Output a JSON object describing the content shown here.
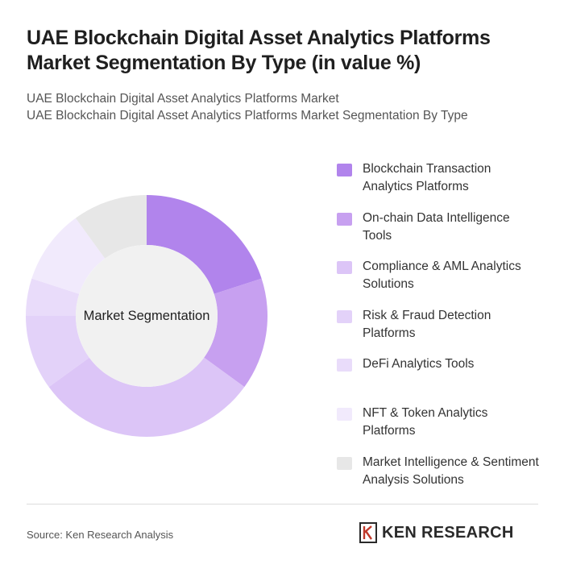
{
  "title_line1": "UAE Blockchain Digital Asset Analytics Platforms",
  "title_line2": "Market Segmentation By Type (in value %)",
  "subtitle_line1": "UAE Blockchain Digital Asset Analytics Platforms Market",
  "subtitle_line2": "UAE Blockchain Digital Asset Analytics Platforms Market Segmentation By Type",
  "center_label": "Market Segmentation",
  "source": "Source: Ken Research Analysis",
  "logo_text": "KEN RESEARCH",
  "chart_data": {
    "type": "pie",
    "variant": "donut",
    "legend_position": "right",
    "categories": [
      "Blockchain Transaction Analytics Platforms",
      "On-chain Data Intelligence Tools",
      "Compliance & AML Analytics Solutions",
      "Risk & Fraud Detection Platforms",
      "DeFi Analytics Tools",
      "NFT & Token Analytics Platforms",
      "Market Intelligence & Sentiment Analysis Solutions"
    ],
    "values": [
      20,
      15,
      30,
      10,
      5,
      10,
      10
    ],
    "colors": [
      "#b184ec",
      "#c7a0f0",
      "#dcc5f7",
      "#e3d2f9",
      "#e9dcfa",
      "#f1eafc",
      "#e7e7e7"
    ]
  }
}
